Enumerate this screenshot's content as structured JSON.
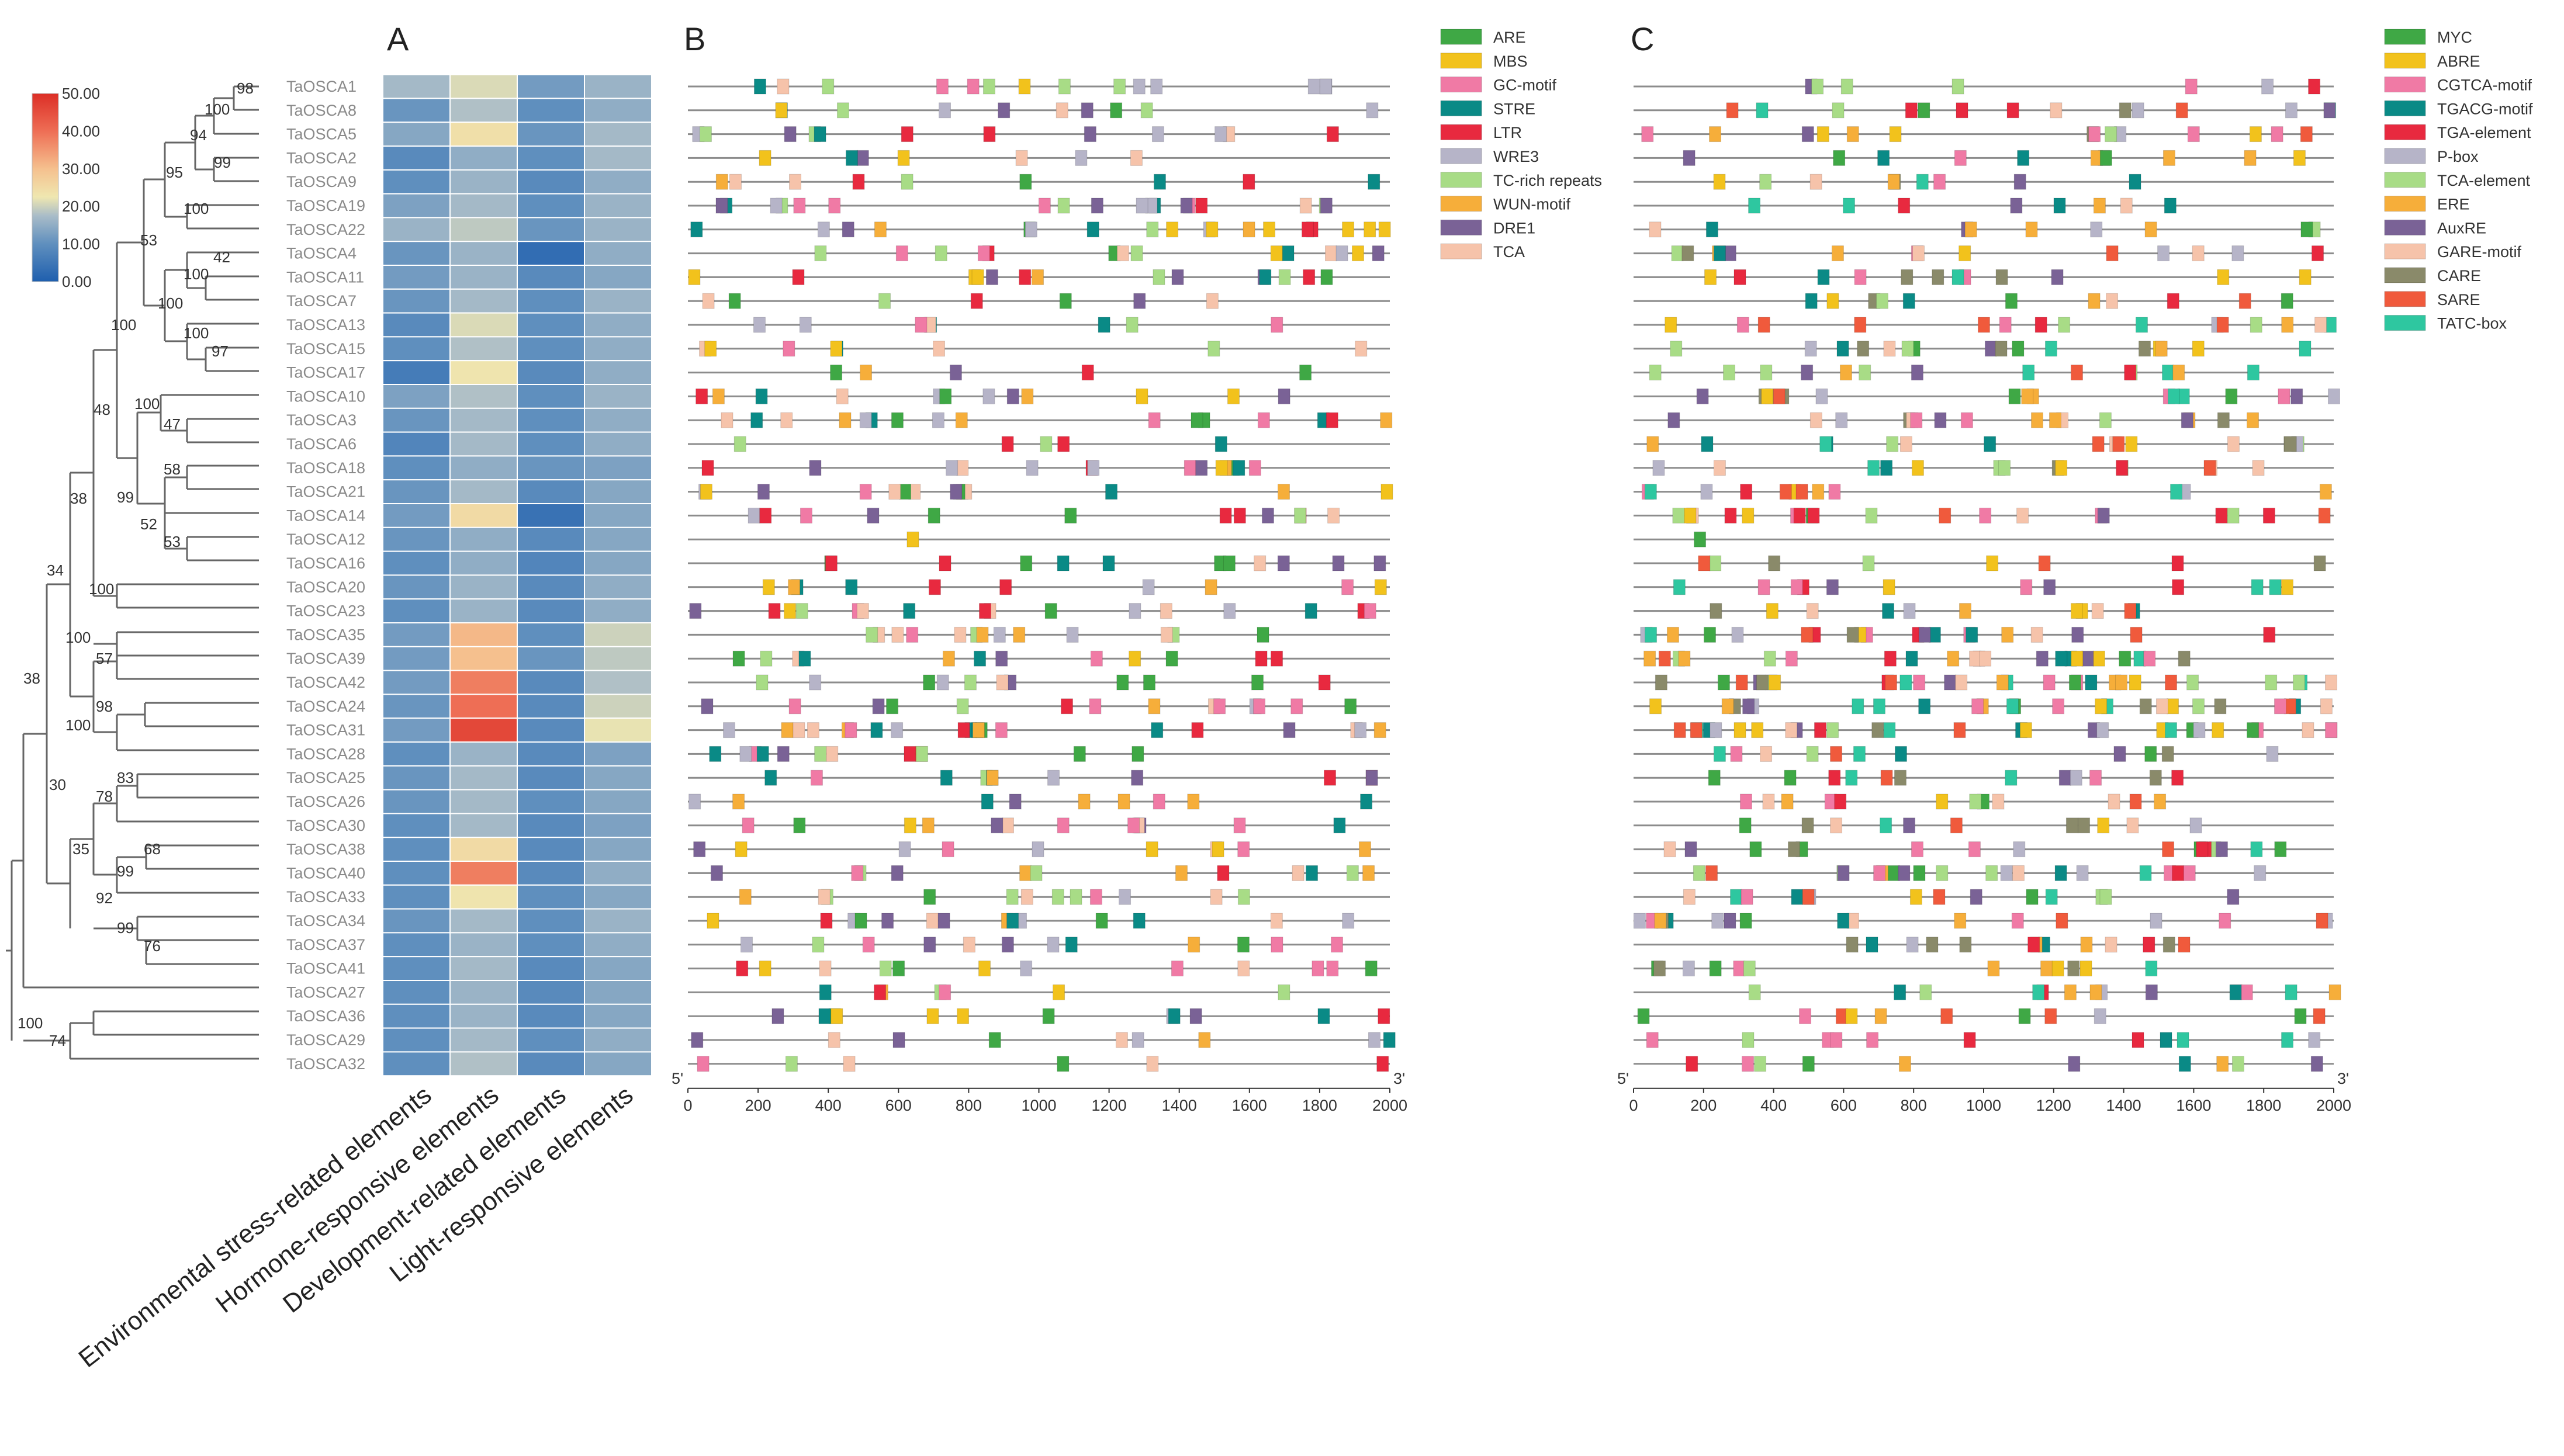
{
  "panels": {
    "a": "A",
    "b": "B",
    "c": "C"
  },
  "genes": [
    "TaOSCA1",
    "TaOSCA8",
    "TaOSCA5",
    "TaOSCA2",
    "TaOSCA9",
    "TaOSCA19",
    "TaOSCA22",
    "TaOSCA4",
    "TaOSCA11",
    "TaOSCA7",
    "TaOSCA13",
    "TaOSCA15",
    "TaOSCA17",
    "TaOSCA10",
    "TaOSCA3",
    "TaOSCA6",
    "TaOSCA18",
    "TaOSCA21",
    "TaOSCA14",
    "TaOSCA12",
    "TaOSCA16",
    "TaOSCA20",
    "TaOSCA23",
    "TaOSCA35",
    "TaOSCA39",
    "TaOSCA42",
    "TaOSCA24",
    "TaOSCA31",
    "TaOSCA28",
    "TaOSCA25",
    "TaOSCA26",
    "TaOSCA30",
    "TaOSCA38",
    "TaOSCA40",
    "TaOSCA33",
    "TaOSCA34",
    "TaOSCA37",
    "TaOSCA41",
    "TaOSCA27",
    "TaOSCA36",
    "TaOSCA29",
    "TaOSCA32"
  ],
  "bootstrap": {
    "b98": "98",
    "b100a": "100",
    "b94": "94",
    "b99a": "99",
    "b95": "95",
    "b100b": "100",
    "b53": "53",
    "b42": "42",
    "b100c": "100",
    "b100d": "100",
    "b100e": "100",
    "b97": "97",
    "b100f": "100",
    "b48": "48",
    "b100g": "100",
    "b47": "47",
    "b58": "58",
    "b99b": "99",
    "b52": "52",
    "b53b": "53",
    "b38a": "38",
    "b34": "34",
    "b100h": "100",
    "b38b": "38",
    "b100i": "100",
    "b57": "57",
    "b98b": "98",
    "b100j": "100",
    "b83": "83",
    "b78": "78",
    "b30": "30",
    "b35": "35",
    "b68": "68",
    "b99c": "99",
    "b92": "92",
    "b99d": "99",
    "b76": "76",
    "b100k": "100",
    "b74": "74"
  },
  "chart_data": [
    {
      "type": "heatmap",
      "panel": "A",
      "columns": [
        "Environmental stress-related elements",
        "Hormone-responsive elements",
        "Development-related elements",
        "Light-responsive elements"
      ],
      "rows": [
        "TaOSCA1",
        "TaOSCA8",
        "TaOSCA5",
        "TaOSCA2",
        "TaOSCA9",
        "TaOSCA19",
        "TaOSCA22",
        "TaOSCA4",
        "TaOSCA11",
        "TaOSCA7",
        "TaOSCA13",
        "TaOSCA15",
        "TaOSCA17",
        "TaOSCA10",
        "TaOSCA3",
        "TaOSCA6",
        "TaOSCA18",
        "TaOSCA21",
        "TaOSCA14",
        "TaOSCA12",
        "TaOSCA16",
        "TaOSCA20",
        "TaOSCA23",
        "TaOSCA35",
        "TaOSCA39",
        "TaOSCA42",
        "TaOSCA24",
        "TaOSCA31",
        "TaOSCA28",
        "TaOSCA25",
        "TaOSCA26",
        "TaOSCA30",
        "TaOSCA38",
        "TaOSCA40",
        "TaOSCA33",
        "TaOSCA34",
        "TaOSCA37",
        "TaOSCA41",
        "TaOSCA27",
        "TaOSCA36",
        "TaOSCA29",
        "TaOSCA32"
      ],
      "values": [
        [
          17,
          21,
          12,
          16
        ],
        [
          11,
          18,
          10,
          15
        ],
        [
          14,
          24,
          11,
          17
        ],
        [
          9,
          15,
          10,
          17
        ],
        [
          10,
          16,
          9,
          15
        ],
        [
          13,
          17,
          10,
          16
        ],
        [
          16,
          19,
          11,
          16
        ],
        [
          11,
          16,
          3,
          15
        ],
        [
          12,
          16,
          9,
          14
        ],
        [
          11,
          17,
          10,
          16
        ],
        [
          9,
          21,
          10,
          15
        ],
        [
          10,
          18,
          10,
          15
        ],
        [
          6,
          23,
          9,
          15
        ],
        [
          13,
          18,
          10,
          16
        ],
        [
          11,
          17,
          10,
          15
        ],
        [
          8,
          17,
          10,
          15
        ],
        [
          10,
          15,
          11,
          13
        ],
        [
          11,
          17,
          9,
          14
        ],
        [
          12,
          25,
          4,
          14
        ],
        [
          11,
          15,
          9,
          14
        ],
        [
          10,
          15,
          8,
          14
        ],
        [
          11,
          16,
          9,
          15
        ],
        [
          10,
          16,
          9,
          15
        ],
        [
          12,
          31,
          10,
          20
        ],
        [
          12,
          30,
          11,
          19
        ],
        [
          12,
          38,
          9,
          18
        ],
        [
          11,
          40,
          9,
          20
        ],
        [
          12,
          46,
          9,
          22
        ],
        [
          10,
          16,
          9,
          13
        ],
        [
          11,
          17,
          9,
          14
        ],
        [
          11,
          17,
          10,
          14
        ],
        [
          10,
          17,
          9,
          13
        ],
        [
          10,
          25,
          9,
          14
        ],
        [
          10,
          38,
          9,
          15
        ],
        [
          10,
          23,
          10,
          14
        ],
        [
          11,
          17,
          10,
          16
        ],
        [
          10,
          16,
          10,
          15
        ],
        [
          10,
          17,
          9,
          14
        ],
        [
          10,
          16,
          9,
          14
        ],
        [
          10,
          16,
          9,
          14
        ],
        [
          10,
          17,
          10,
          15
        ],
        [
          10,
          18,
          9,
          14
        ]
      ],
      "colorbar": {
        "min": 0,
        "max": 50,
        "ticks": [
          "0.00",
          "10.00",
          "20.00",
          "30.00",
          "40.00",
          "50.00"
        ]
      }
    },
    {
      "type": "scatter",
      "panel": "B",
      "x_range": [
        0,
        2000
      ],
      "x_ticks": [
        "0",
        "200",
        "400",
        "600",
        "800",
        "1000",
        "1200",
        "1400",
        "1600",
        "1800",
        "2000"
      ],
      "end_labels": {
        "left": "5'",
        "right": "3'"
      },
      "legend": [
        {
          "name": "ARE",
          "color": "#3fa845"
        },
        {
          "name": "MBS",
          "color": "#f2c21c"
        },
        {
          "name": "GC-motif",
          "color": "#f07aa5"
        },
        {
          "name": "STRE",
          "color": "#0a8a86"
        },
        {
          "name": "LTR",
          "color": "#e8293f"
        },
        {
          "name": "WRE3",
          "color": "#b6b4c8"
        },
        {
          "name": "TC-rich repeats",
          "color": "#a8dc86"
        },
        {
          "name": "WUN-motif",
          "color": "#f6ae3a"
        },
        {
          "name": "DRE1",
          "color": "#7a6296"
        },
        {
          "name": "TCA",
          "color": "#f6c3aa"
        }
      ]
    },
    {
      "type": "scatter",
      "panel": "C",
      "x_range": [
        0,
        2000
      ],
      "x_ticks": [
        "0",
        "200",
        "400",
        "600",
        "800",
        "1000",
        "1200",
        "1400",
        "1600",
        "1800",
        "2000"
      ],
      "end_labels": {
        "left": "5'",
        "right": "3'"
      },
      "legend": [
        {
          "name": "MYC",
          "color": "#3fa845"
        },
        {
          "name": "ABRE",
          "color": "#f2c21c"
        },
        {
          "name": "CGTCA-motif",
          "color": "#f07aa5"
        },
        {
          "name": "TGACG-motif",
          "color": "#0a8a86"
        },
        {
          "name": "TGA-element",
          "color": "#e8293f"
        },
        {
          "name": "P-box",
          "color": "#b6b4c8"
        },
        {
          "name": "TCA-element",
          "color": "#a8dc86"
        },
        {
          "name": "ERE",
          "color": "#f6ae3a"
        },
        {
          "name": "AuxRE",
          "color": "#7a6296"
        },
        {
          "name": "GARE-motif",
          "color": "#f6c3aa"
        },
        {
          "name": "CARE",
          "color": "#8a8a6a"
        },
        {
          "name": "SARE",
          "color": "#f05a3c"
        },
        {
          "name": "TATC-box",
          "color": "#2ec7a0"
        }
      ]
    }
  ]
}
